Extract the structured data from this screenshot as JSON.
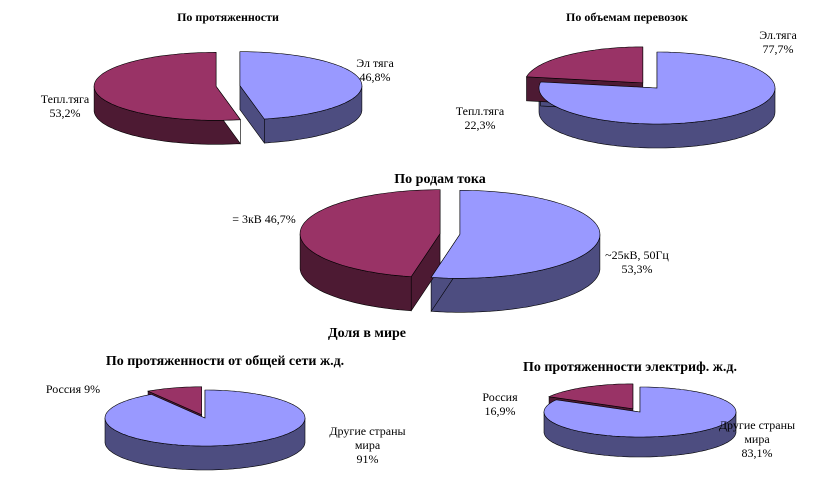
{
  "section_title": "Доля в мире",
  "chart_data": [
    {
      "type": "pie",
      "title": "По протяженности",
      "categories": [
        "Эл тяга",
        "Тепл.тяга"
      ],
      "values": [
        46.8,
        53.2
      ],
      "value_labels": [
        "46,8%",
        "53,2%"
      ],
      "colors": [
        "#9999ff",
        "#993366"
      ]
    },
    {
      "type": "pie",
      "title": "По объемам перевозок",
      "categories": [
        "Эл.тяга",
        "Тепл.тяга"
      ],
      "values": [
        77.7,
        22.3
      ],
      "value_labels": [
        "77,7%",
        "22,3%"
      ],
      "colors": [
        "#9999ff",
        "#993366"
      ]
    },
    {
      "type": "pie",
      "title": "По родам тока",
      "categories": [
        "~25кВ, 50Гц",
        "= 3кВ"
      ],
      "values": [
        53.3,
        46.7
      ],
      "value_labels": [
        "53,3%",
        "46,7%"
      ],
      "colors": [
        "#9999ff",
        "#993366"
      ]
    },
    {
      "type": "pie",
      "title": "По протяженности от общей сети ж.д.",
      "categories": [
        "Другие страны мира",
        "Россия"
      ],
      "values": [
        91,
        9
      ],
      "value_labels": [
        "91%",
        "9%"
      ],
      "colors": [
        "#9999ff",
        "#993366"
      ]
    },
    {
      "type": "pie",
      "title": "По протяженности электриф. ж.д.",
      "categories": [
        "Другие страны мира",
        "Россия"
      ],
      "values": [
        83.1,
        16.9
      ],
      "value_labels": [
        "83,1%",
        "16,9%"
      ],
      "colors": [
        "#9999ff",
        "#993366"
      ]
    }
  ]
}
